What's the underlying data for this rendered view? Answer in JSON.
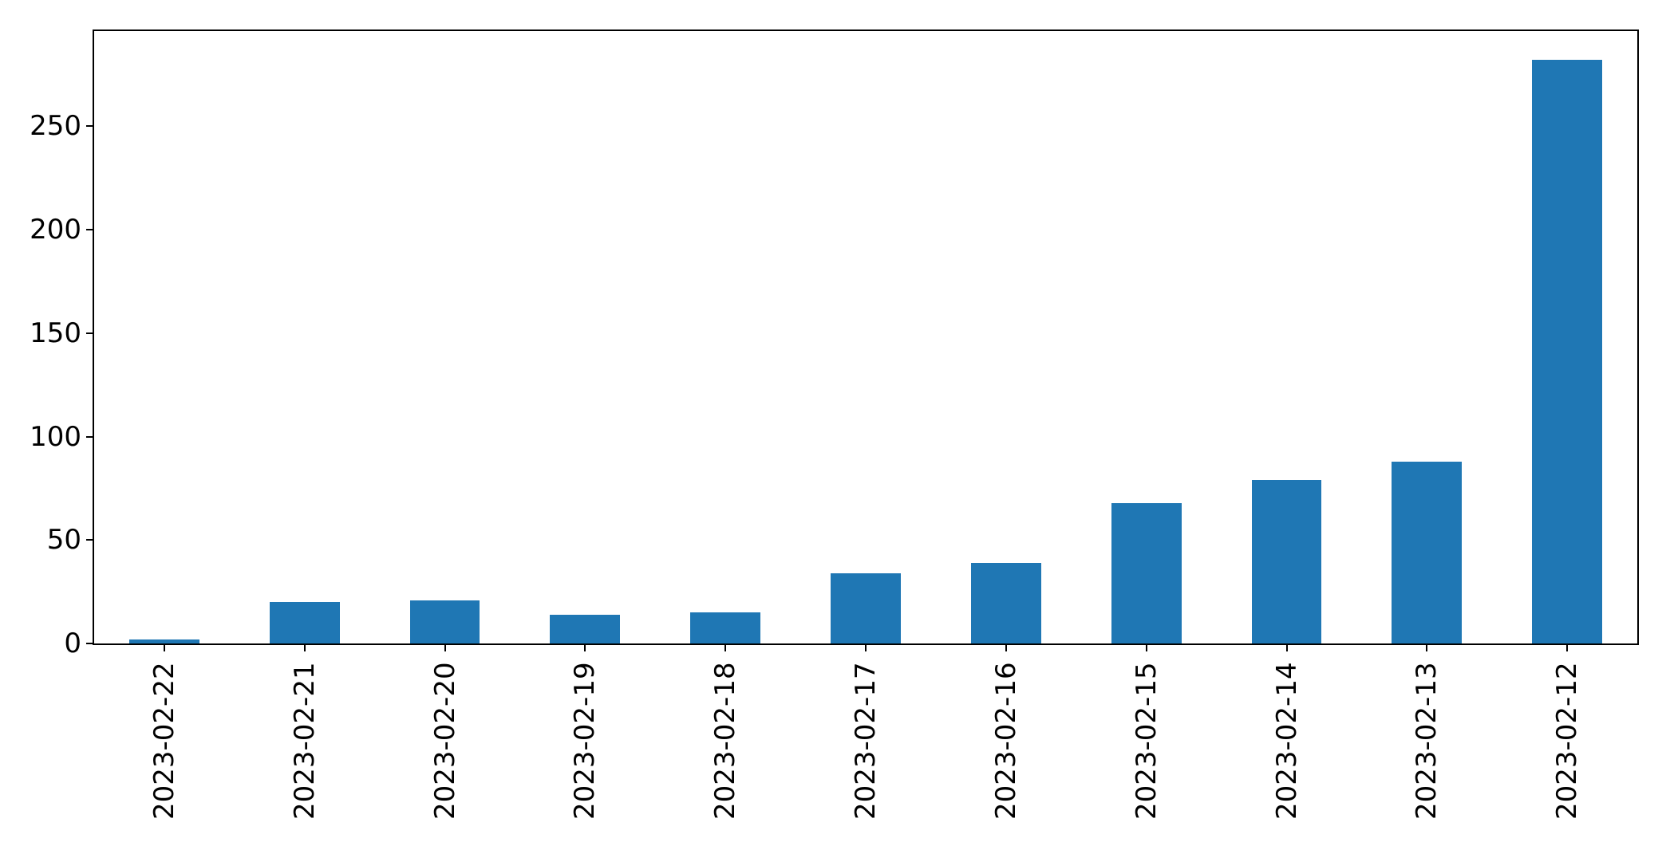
{
  "chart_data": {
    "type": "bar",
    "title": "",
    "xlabel": "",
    "ylabel": "",
    "categories": [
      "2023-02-22",
      "2023-02-21",
      "2023-02-20",
      "2023-02-19",
      "2023-02-18",
      "2023-02-17",
      "2023-02-16",
      "2023-02-15",
      "2023-02-14",
      "2023-02-13",
      "2023-02-12"
    ],
    "values": [
      2,
      20,
      21,
      14,
      15,
      34,
      39,
      68,
      79,
      88,
      282
    ],
    "yticks": [
      0,
      50,
      100,
      150,
      200,
      250
    ],
    "ylim": [
      0,
      296
    ],
    "bar_color": "#1f77b4",
    "bar_width_fraction": 0.5,
    "x_tick_rotation_deg": 90,
    "grid": false,
    "legend": false,
    "spine_color": "#000000",
    "background_color": "#ffffff"
  }
}
